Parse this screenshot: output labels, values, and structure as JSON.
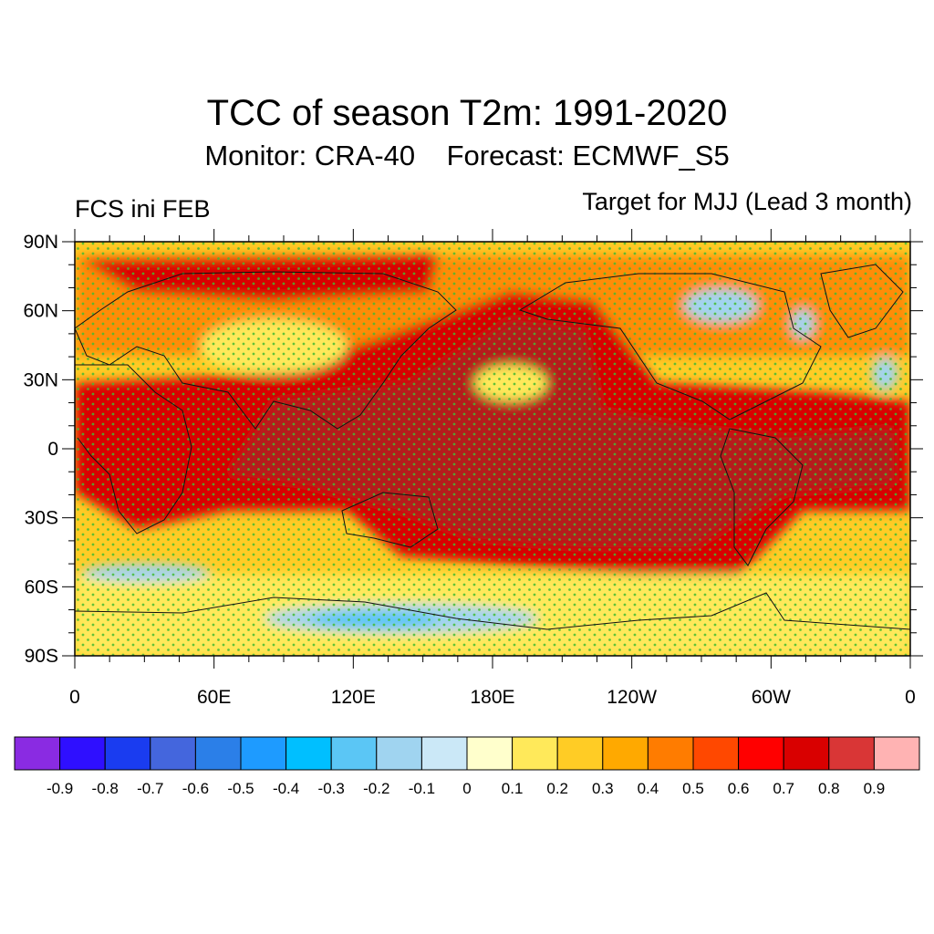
{
  "title": "TCC of season T2m: 1991-2020",
  "subtitle": {
    "monitor": "Monitor: CRA-40",
    "forecast": "Forecast: ECMWF_S5"
  },
  "left_label": "FCS ini FEB",
  "right_label": "Target for MJJ (Lead 3 month)",
  "lat_labels": [
    "90N",
    "60N",
    "30N",
    "0",
    "30S",
    "60S",
    "90S"
  ],
  "lon_labels": [
    "0",
    "60E",
    "120E",
    "180E",
    "120W",
    "60W",
    "0"
  ],
  "colorbar": {
    "colors": [
      "#8a2be2",
      "#2f0fff",
      "#1a3cf0",
      "#4466dd",
      "#2b7fe8",
      "#1e9bff",
      "#00bfff",
      "#5bc6f5",
      "#a0d4f0",
      "#cbe8f7",
      "#ffffcc",
      "#ffe95a",
      "#ffcc25",
      "#ffa900",
      "#ff7c00",
      "#ff4800",
      "#ff0000",
      "#d90000",
      "#d93636",
      "#ffb3b3"
    ],
    "labels": [
      "-0.9",
      "-0.8",
      "-0.7",
      "-0.6",
      "-0.5",
      "-0.4",
      "-0.3",
      "-0.2",
      "-0.1",
      "0",
      "0.1",
      "0.2",
      "0.3",
      "0.4",
      "0.5",
      "0.6",
      "0.7",
      "0.8",
      "0.9"
    ]
  },
  "palette": {
    "ocean_base": "#ffcc25",
    "tropics": "#d90000",
    "strong": "#b51c1c",
    "mid": "#ff7c00",
    "light": "#ffe95a",
    "negative": "#a0d4f0",
    "negative_strong": "#5bc6f5",
    "stipple": "#44bb33"
  }
}
